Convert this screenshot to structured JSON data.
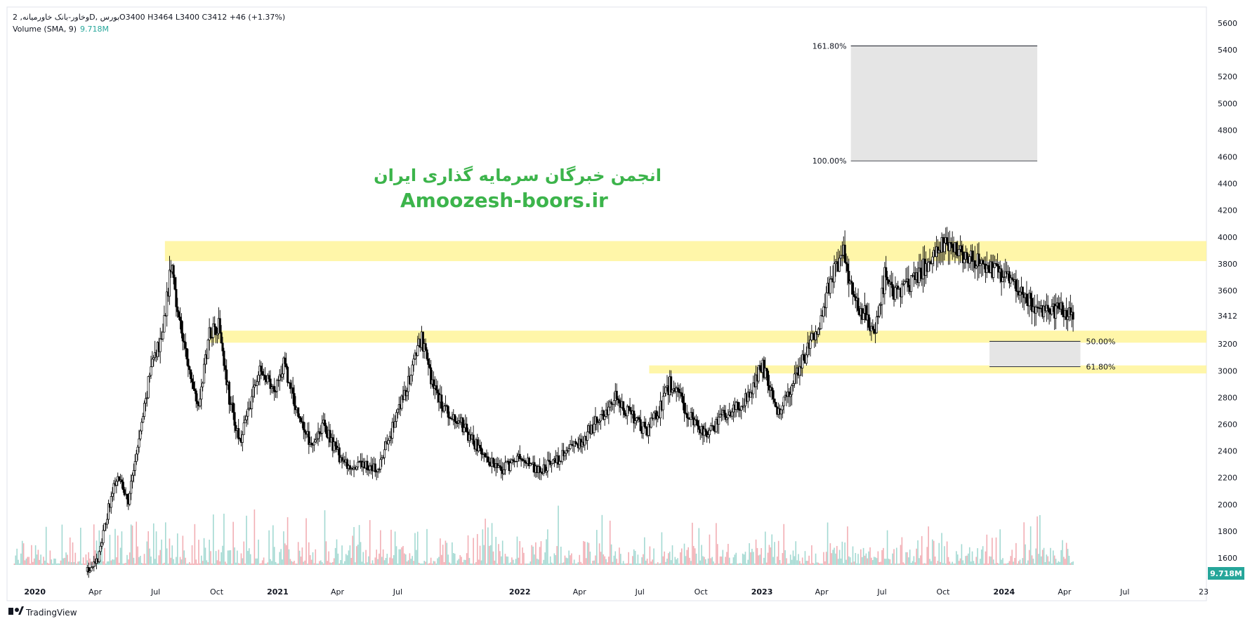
{
  "header": {
    "symbol_line": "وخاور-بانک خاورمیانه, 2D, بورس",
    "ohlc": "O3400  H3464  L3400  C3412  +46 (+1.37%)",
    "volume_label": "Volume (SMA, 9)",
    "volume_value": "9.718M"
  },
  "watermark": {
    "line1": "انجمن خبرگان سرمایه گذاری ایران",
    "line2": "Amoozesh-boors.ir"
  },
  "footer": {
    "brand": "TradingView",
    "timezone_btn": "23"
  },
  "colors": {
    "up_volume": "#a3d9d2",
    "down_volume": "#f2aeb4",
    "candle": "#000000",
    "zone": "#fff59a",
    "fib_box": "#e5e5e5",
    "watermark": "#3cb44b",
    "volume_badge": "#26a69a"
  },
  "chart_data": {
    "type": "candlestick",
    "y_axis": {
      "min": 1400,
      "max": 5600,
      "ticks": [
        1600,
        1800,
        2000,
        2200,
        2400,
        2600,
        2800,
        3000,
        3200,
        3412,
        3600,
        3800,
        4000,
        4200,
        4400,
        4600,
        4800,
        5000,
        5200,
        5400,
        5600
      ],
      "last_price_label": "3412"
    },
    "x_axis": {
      "start": "2019-11-20",
      "end": "2024-11-01",
      "ticks": [
        {
          "date": "2020-01-01",
          "label": "2020"
        },
        {
          "date": "2020-04-01",
          "label": "Apr"
        },
        {
          "date": "2020-07-01",
          "label": "Jul"
        },
        {
          "date": "2020-10-01",
          "label": "Oct"
        },
        {
          "date": "2021-01-01",
          "label": "2021"
        },
        {
          "date": "2021-04-01",
          "label": "Apr"
        },
        {
          "date": "2021-07-01",
          "label": "Jul"
        },
        {
          "date": "2022-01-01",
          "label": "2022"
        },
        {
          "date": "2022-04-01",
          "label": "Apr"
        },
        {
          "date": "2022-07-01",
          "label": "Jul"
        },
        {
          "date": "2022-10-01",
          "label": "Oct"
        },
        {
          "date": "2023-01-01",
          "label": "2023"
        },
        {
          "date": "2023-04-01",
          "label": "Apr"
        },
        {
          "date": "2023-07-01",
          "label": "Jul"
        },
        {
          "date": "2023-10-01",
          "label": "Oct"
        },
        {
          "date": "2024-01-01",
          "label": "2024"
        },
        {
          "date": "2024-04-01",
          "label": "Apr"
        },
        {
          "date": "2024-07-01",
          "label": "Jul"
        }
      ]
    },
    "price_path": [
      {
        "date": "2020-03-20",
        "price": 1500
      },
      {
        "date": "2020-04-05",
        "price": 1580
      },
      {
        "date": "2020-04-20",
        "price": 1950
      },
      {
        "date": "2020-05-05",
        "price": 2250
      },
      {
        "date": "2020-05-20",
        "price": 2000
      },
      {
        "date": "2020-06-10",
        "price": 2600
      },
      {
        "date": "2020-06-25",
        "price": 3050
      },
      {
        "date": "2020-07-10",
        "price": 3250
      },
      {
        "date": "2020-07-25",
        "price": 3800
      },
      {
        "date": "2020-08-05",
        "price": 3400
      },
      {
        "date": "2020-08-20",
        "price": 3000
      },
      {
        "date": "2020-09-05",
        "price": 2750
      },
      {
        "date": "2020-09-20",
        "price": 3300
      },
      {
        "date": "2020-10-05",
        "price": 3350
      },
      {
        "date": "2020-10-20",
        "price": 2800
      },
      {
        "date": "2020-11-05",
        "price": 2450
      },
      {
        "date": "2020-11-20",
        "price": 2750
      },
      {
        "date": "2020-12-05",
        "price": 3000
      },
      {
        "date": "2020-12-25",
        "price": 2850
      },
      {
        "date": "2021-01-10",
        "price": 3050
      },
      {
        "date": "2021-01-30",
        "price": 2700
      },
      {
        "date": "2021-02-20",
        "price": 2450
      },
      {
        "date": "2021-03-10",
        "price": 2600
      },
      {
        "date": "2021-03-30",
        "price": 2400
      },
      {
        "date": "2021-04-20",
        "price": 2250
      },
      {
        "date": "2021-05-10",
        "price": 2300
      },
      {
        "date": "2021-06-01",
        "price": 2250
      },
      {
        "date": "2021-06-25",
        "price": 2600
      },
      {
        "date": "2021-07-20",
        "price": 2950
      },
      {
        "date": "2021-08-05",
        "price": 3250
      },
      {
        "date": "2021-08-20",
        "price": 2950
      },
      {
        "date": "2021-09-10",
        "price": 2700
      },
      {
        "date": "2021-10-05",
        "price": 2600
      },
      {
        "date": "2021-11-01",
        "price": 2400
      },
      {
        "date": "2021-12-01",
        "price": 2250
      },
      {
        "date": "2022-01-01",
        "price": 2350
      },
      {
        "date": "2022-02-01",
        "price": 2250
      },
      {
        "date": "2022-03-01",
        "price": 2350
      },
      {
        "date": "2022-04-01",
        "price": 2450
      },
      {
        "date": "2022-05-01",
        "price": 2650
      },
      {
        "date": "2022-05-25",
        "price": 2800
      },
      {
        "date": "2022-06-20",
        "price": 2650
      },
      {
        "date": "2022-07-10",
        "price": 2550
      },
      {
        "date": "2022-07-30",
        "price": 2700
      },
      {
        "date": "2022-08-15",
        "price": 2900
      },
      {
        "date": "2022-09-01",
        "price": 2780
      },
      {
        "date": "2022-09-20",
        "price": 2600
      },
      {
        "date": "2022-10-10",
        "price": 2500
      },
      {
        "date": "2022-11-01",
        "price": 2650
      },
      {
        "date": "2022-11-25",
        "price": 2720
      },
      {
        "date": "2022-12-15",
        "price": 2850
      },
      {
        "date": "2023-01-01",
        "price": 3050
      },
      {
        "date": "2023-01-25",
        "price": 2700
      },
      {
        "date": "2023-02-10",
        "price": 2800
      },
      {
        "date": "2023-03-01",
        "price": 3050
      },
      {
        "date": "2023-03-25",
        "price": 3300
      },
      {
        "date": "2023-04-15",
        "price": 3700
      },
      {
        "date": "2023-05-05",
        "price": 3900
      },
      {
        "date": "2023-05-20",
        "price": 3500
      },
      {
        "date": "2023-06-10",
        "price": 3400
      },
      {
        "date": "2023-06-20",
        "price": 3250
      },
      {
        "date": "2023-07-05",
        "price": 3700
      },
      {
        "date": "2023-07-25",
        "price": 3550
      },
      {
        "date": "2023-08-15",
        "price": 3650
      },
      {
        "date": "2023-09-05",
        "price": 3800
      },
      {
        "date": "2023-09-25",
        "price": 3950
      },
      {
        "date": "2023-10-15",
        "price": 3950
      },
      {
        "date": "2023-11-05",
        "price": 3850
      },
      {
        "date": "2023-12-01",
        "price": 3800
      },
      {
        "date": "2024-01-01",
        "price": 3700
      },
      {
        "date": "2024-02-01",
        "price": 3550
      },
      {
        "date": "2024-03-01",
        "price": 3420
      },
      {
        "date": "2024-03-25",
        "price": 3450
      },
      {
        "date": "2024-04-15",
        "price": 3412
      }
    ],
    "support_resistance_zones": [
      {
        "from": "2020-07-15",
        "low": 3820,
        "high": 3970
      },
      {
        "from": "2020-09-20",
        "low": 3210,
        "high": 3300
      },
      {
        "from": "2022-07-15",
        "low": 2980,
        "high": 3040
      }
    ],
    "fibonacci": [
      {
        "from": "2023-05-15",
        "to": "2024-02-20",
        "upper": 5430,
        "lower": 4570,
        "upper_label": "161.80%",
        "lower_label": "100.00%"
      },
      {
        "from": "2023-12-10",
        "to": "2024-04-25",
        "upper": 3220,
        "lower": 3030,
        "upper_label": "50.00%",
        "lower_label": "61.80%"
      }
    ]
  }
}
